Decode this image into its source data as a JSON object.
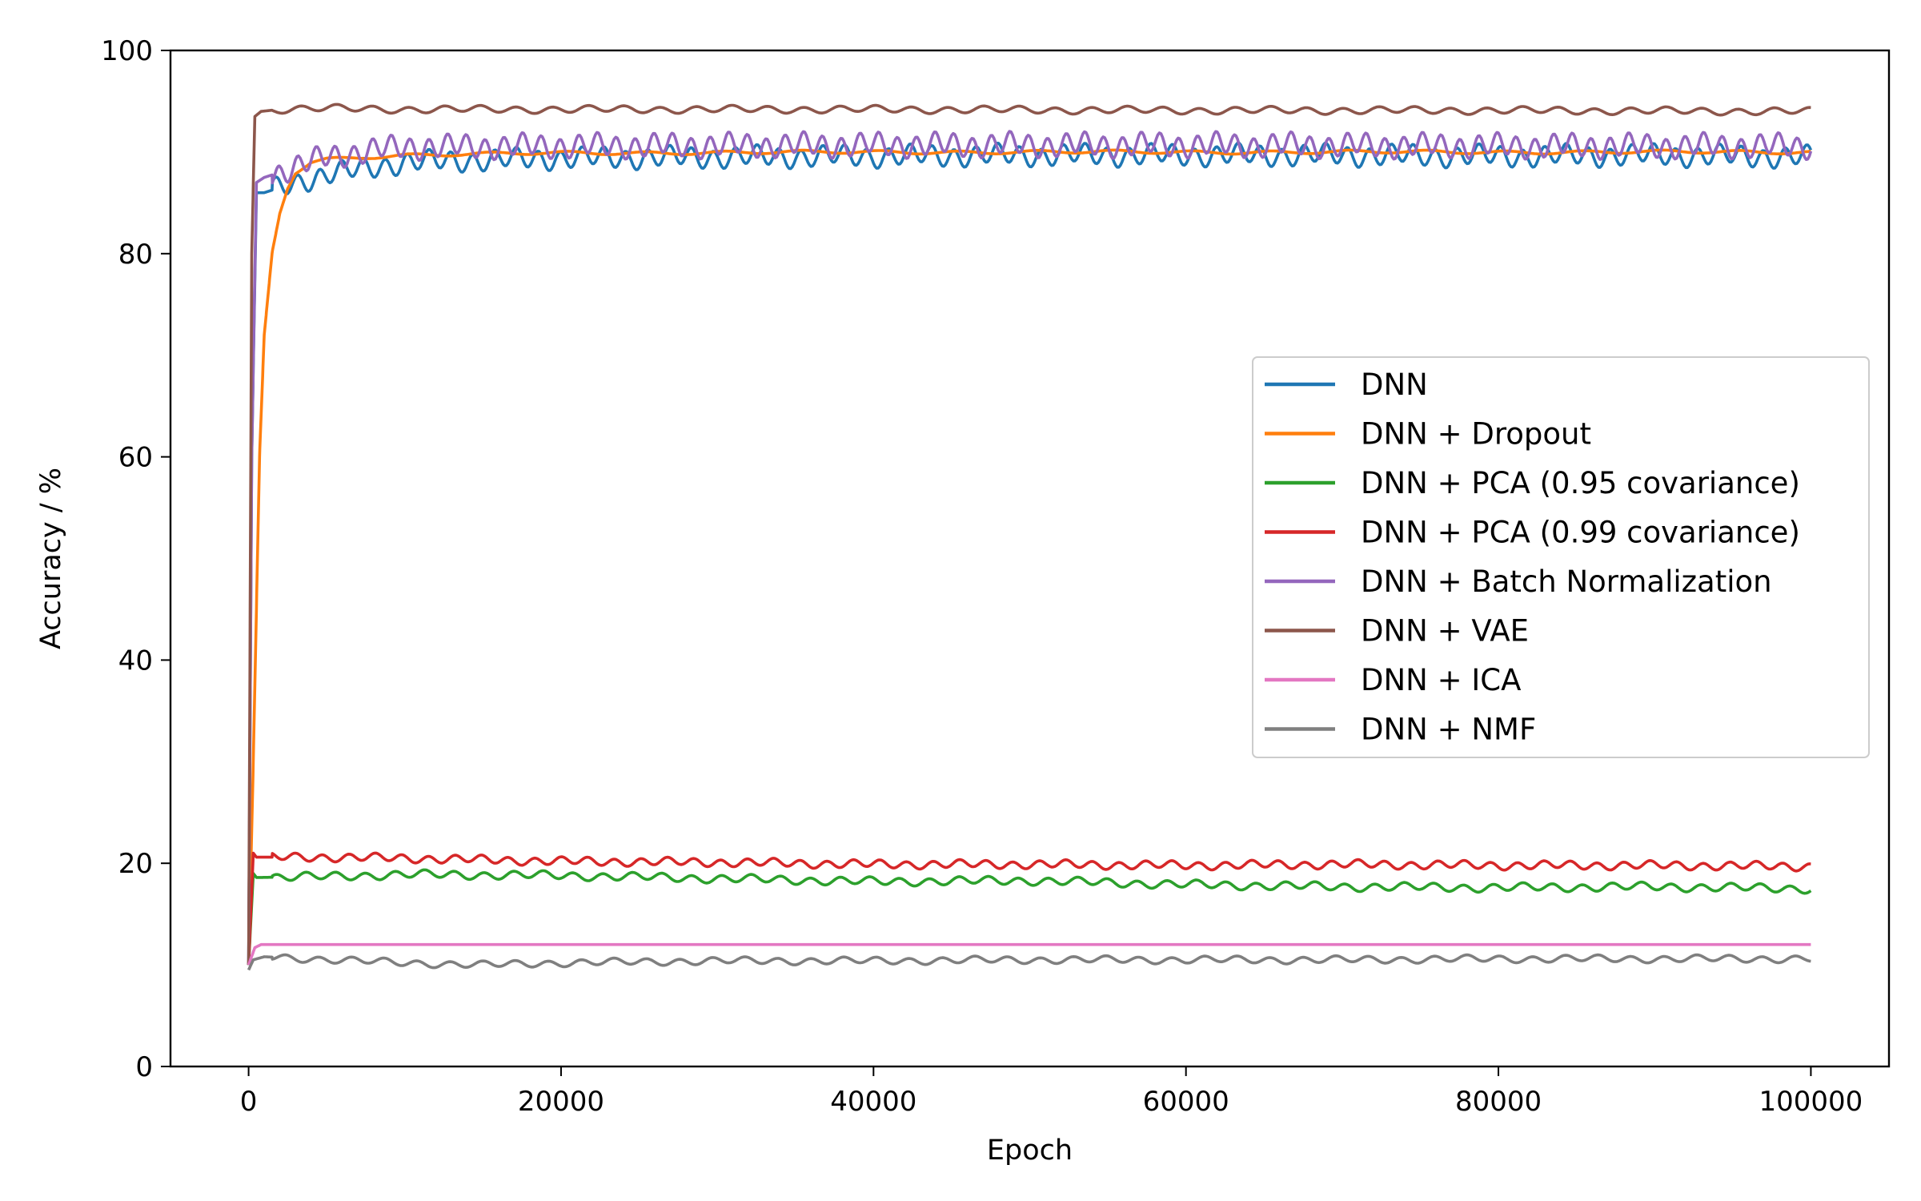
{
  "chart_data": {
    "type": "line",
    "title": "",
    "xlabel": "Epoch",
    "ylabel": "Accuracy / %",
    "xlim": [
      -5000,
      105000
    ],
    "ylim": [
      0,
      100
    ],
    "xticks": [
      0,
      20000,
      40000,
      60000,
      80000,
      100000
    ],
    "yticks": [
      0,
      20,
      40,
      60,
      80,
      100
    ],
    "grid": false,
    "legend_position": "center-right",
    "series": [
      {
        "name": "DNN",
        "color": "#1f77b4",
        "x": [
          0,
          200,
          500,
          1000,
          2000,
          3000,
          5000,
          8000,
          10000,
          15000,
          20000,
          30000,
          40000,
          50000,
          60000,
          70000,
          80000,
          90000,
          100000
        ],
        "y": [
          10,
          60,
          86,
          86,
          86.5,
          87,
          87.8,
          88.5,
          89,
          89.2,
          89.4,
          89.5,
          89.6,
          89.7,
          89.7,
          89.7,
          89.6,
          89.7,
          89.5
        ],
        "osc_amp": 0.9,
        "osc_period": 1400
      },
      {
        "name": "DNN + Dropout",
        "color": "#ff7f0e",
        "x": [
          0,
          300,
          700,
          1000,
          1500,
          2000,
          2500,
          3000,
          4000,
          5000,
          7000,
          10000,
          20000,
          40000,
          60000,
          80000,
          100000
        ],
        "y": [
          10,
          30,
          60,
          72,
          80,
          84,
          86.5,
          88,
          89,
          89.3,
          89.5,
          89.7,
          89.9,
          90,
          90,
          90,
          90
        ],
        "osc_amp": 0.15,
        "osc_period": 5000
      },
      {
        "name": "DNN + PCA (0.95 covariance)",
        "color": "#2ca02c",
        "x": [
          0,
          300,
          500,
          5000,
          10000,
          20000,
          30000,
          40000,
          50000,
          60000,
          70000,
          80000,
          90000,
          100000
        ],
        "y": [
          10,
          19,
          18.6,
          18.7,
          18.9,
          18.8,
          18.5,
          18.2,
          18.3,
          17.9,
          17.7,
          17.6,
          17.7,
          17.5
        ],
        "osc_amp": 0.35,
        "osc_period": 1900
      },
      {
        "name": "DNN + PCA (0.99 covariance)",
        "color": "#d62728",
        "x": [
          0,
          300,
          500,
          5000,
          10000,
          20000,
          30000,
          40000,
          50000,
          60000,
          70000,
          80000,
          90000,
          100000
        ],
        "y": [
          10,
          21,
          20.6,
          20.6,
          20.5,
          20.2,
          20.1,
          19.9,
          19.9,
          19.8,
          19.9,
          19.8,
          19.8,
          19.7
        ],
        "osc_amp": 0.35,
        "osc_period": 1700
      },
      {
        "name": "DNN + Batch Normalization",
        "color": "#9467bd",
        "x": [
          0,
          200,
          500,
          1000,
          2000,
          3000,
          5000,
          8000,
          10000,
          20000,
          40000,
          60000,
          80000,
          100000
        ],
        "y": [
          10,
          60,
          87,
          87.5,
          88,
          88.6,
          89.5,
          90.2,
          90.5,
          90.6,
          90.7,
          90.7,
          90.6,
          90.6
        ],
        "osc_amp": 1.0,
        "osc_period": 1200
      },
      {
        "name": "DNN + VAE",
        "color": "#8c564b",
        "x": [
          0,
          200,
          400,
          800,
          2000,
          5000,
          10000,
          20000,
          40000,
          60000,
          80000,
          100000
        ],
        "y": [
          10,
          80,
          93.5,
          94,
          94.2,
          94.3,
          94.2,
          94.2,
          94.2,
          94.1,
          94.1,
          94
        ],
        "osc_amp": 0.3,
        "osc_period": 2300
      },
      {
        "name": "DNN + ICA",
        "color": "#e377c2",
        "x": [
          0,
          400,
          800,
          5000,
          20000,
          40000,
          60000,
          80000,
          100000
        ],
        "y": [
          10,
          11.7,
          12,
          12,
          12,
          12,
          12,
          12,
          12
        ],
        "osc_amp": 0,
        "osc_period": 1000
      },
      {
        "name": "DNN + NMF",
        "color": "#7f7f7f",
        "x": [
          0,
          300,
          1000,
          4000,
          10000,
          15000,
          20000,
          30000,
          40000,
          50000,
          60000,
          70000,
          80000,
          90000,
          100000
        ],
        "y": [
          9.5,
          10.5,
          10.8,
          10.6,
          10.2,
          10,
          10.2,
          10.4,
          10.4,
          10.5,
          10.5,
          10.5,
          10.6,
          10.6,
          10.6
        ],
        "osc_amp": 0.3,
        "osc_period": 2100
      }
    ]
  }
}
